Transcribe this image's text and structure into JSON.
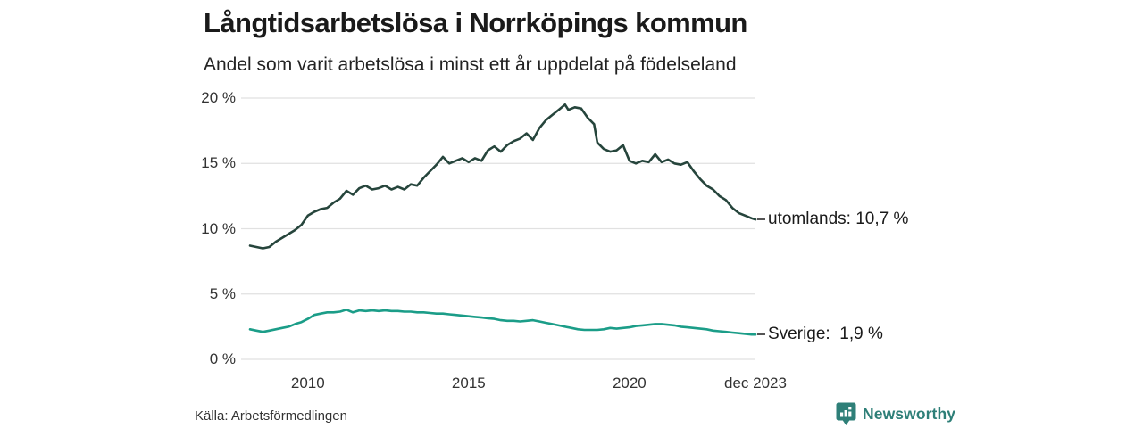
{
  "header": {
    "title": "Långtidsarbetslösa i Norrköpings kommun",
    "subtitle": "Andel som varit arbetslösa i minst ett år uppdelat på födelseland"
  },
  "footer": {
    "source": "Källa: Arbetsförmedlingen",
    "brand": "Newsworthy"
  },
  "colors": {
    "utomlands_line": "#26453c",
    "sverige_line": "#1b9d88",
    "grid": "#e1e1e1",
    "text": "#1a1a1a",
    "axis_text": "#333333",
    "brand": "#2e7f78",
    "label_dash": "#555555"
  },
  "chart_data": {
    "type": "line",
    "title": "Långtidsarbetslösa i Norrköpings kommun",
    "subtitle": "Andel som varit arbetslösa i minst ett år uppdelat på födelseland",
    "grid": "horizontal-only",
    "legend_position": "right-end-labels",
    "x_axis": {
      "range": [
        2008.2,
        2023.92
      ],
      "ticks": [
        {
          "value": 2010,
          "label": "2010"
        },
        {
          "value": 2015,
          "label": "2015"
        },
        {
          "value": 2020,
          "label": "2020"
        },
        {
          "value": 2023.92,
          "label": "dec 2023"
        }
      ]
    },
    "y_axis": {
      "unit": "%",
      "range": [
        0,
        20
      ],
      "ticks": [
        {
          "value": 20,
          "label": "20 %"
        },
        {
          "value": 15,
          "label": "15 %"
        },
        {
          "value": 10,
          "label": "10 %"
        },
        {
          "value": 5,
          "label": "5 %"
        },
        {
          "value": 0,
          "label": "0 %"
        }
      ]
    },
    "series": [
      {
        "name": "utomlands",
        "end_label": "utomlands: 10,7 %",
        "last_value": 10.7,
        "color": "#26453c",
        "points": [
          [
            2008.2,
            8.7
          ],
          [
            2008.4,
            8.6
          ],
          [
            2008.6,
            8.5
          ],
          [
            2008.8,
            8.6
          ],
          [
            2009.0,
            9.0
          ],
          [
            2009.2,
            9.3
          ],
          [
            2009.4,
            9.6
          ],
          [
            2009.6,
            9.9
          ],
          [
            2009.8,
            10.3
          ],
          [
            2010.0,
            11.0
          ],
          [
            2010.2,
            11.3
          ],
          [
            2010.4,
            11.5
          ],
          [
            2010.6,
            11.6
          ],
          [
            2010.8,
            12.0
          ],
          [
            2011.0,
            12.3
          ],
          [
            2011.2,
            12.9
          ],
          [
            2011.4,
            12.6
          ],
          [
            2011.6,
            13.1
          ],
          [
            2011.8,
            13.3
          ],
          [
            2012.0,
            13.0
          ],
          [
            2012.2,
            13.1
          ],
          [
            2012.4,
            13.3
          ],
          [
            2012.6,
            13.0
          ],
          [
            2012.8,
            13.2
          ],
          [
            2013.0,
            13.0
          ],
          [
            2013.2,
            13.4
          ],
          [
            2013.4,
            13.3
          ],
          [
            2013.6,
            13.9
          ],
          [
            2013.8,
            14.4
          ],
          [
            2014.0,
            14.9
          ],
          [
            2014.2,
            15.5
          ],
          [
            2014.4,
            15.0
          ],
          [
            2014.6,
            15.2
          ],
          [
            2014.8,
            15.4
          ],
          [
            2015.0,
            15.1
          ],
          [
            2015.2,
            15.4
          ],
          [
            2015.4,
            15.2
          ],
          [
            2015.6,
            16.0
          ],
          [
            2015.8,
            16.3
          ],
          [
            2016.0,
            15.9
          ],
          [
            2016.2,
            16.4
          ],
          [
            2016.4,
            16.7
          ],
          [
            2016.6,
            16.9
          ],
          [
            2016.8,
            17.3
          ],
          [
            2017.0,
            16.8
          ],
          [
            2017.2,
            17.7
          ],
          [
            2017.4,
            18.3
          ],
          [
            2017.6,
            18.7
          ],
          [
            2017.8,
            19.1
          ],
          [
            2018.0,
            19.5
          ],
          [
            2018.1,
            19.1
          ],
          [
            2018.3,
            19.3
          ],
          [
            2018.5,
            19.2
          ],
          [
            2018.7,
            18.5
          ],
          [
            2018.9,
            18.0
          ],
          [
            2019.0,
            16.6
          ],
          [
            2019.2,
            16.1
          ],
          [
            2019.4,
            15.9
          ],
          [
            2019.6,
            16.0
          ],
          [
            2019.8,
            16.4
          ],
          [
            2020.0,
            15.2
          ],
          [
            2020.2,
            15.0
          ],
          [
            2020.4,
            15.2
          ],
          [
            2020.6,
            15.1
          ],
          [
            2020.8,
            15.7
          ],
          [
            2021.0,
            15.1
          ],
          [
            2021.2,
            15.3
          ],
          [
            2021.4,
            15.0
          ],
          [
            2021.6,
            14.9
          ],
          [
            2021.8,
            15.1
          ],
          [
            2022.0,
            14.4
          ],
          [
            2022.2,
            13.8
          ],
          [
            2022.4,
            13.3
          ],
          [
            2022.6,
            13.0
          ],
          [
            2022.8,
            12.5
          ],
          [
            2023.0,
            12.2
          ],
          [
            2023.2,
            11.6
          ],
          [
            2023.4,
            11.2
          ],
          [
            2023.6,
            11.0
          ],
          [
            2023.8,
            10.8
          ],
          [
            2023.92,
            10.7
          ]
        ]
      },
      {
        "name": "Sverige",
        "end_label": "Sverige:  1,9 %",
        "last_value": 1.9,
        "color": "#1b9d88",
        "points": [
          [
            2008.2,
            2.3
          ],
          [
            2008.4,
            2.2
          ],
          [
            2008.6,
            2.1
          ],
          [
            2008.8,
            2.2
          ],
          [
            2009.0,
            2.3
          ],
          [
            2009.2,
            2.4
          ],
          [
            2009.4,
            2.5
          ],
          [
            2009.6,
            2.7
          ],
          [
            2009.8,
            2.85
          ],
          [
            2010.0,
            3.1
          ],
          [
            2010.2,
            3.4
          ],
          [
            2010.4,
            3.5
          ],
          [
            2010.6,
            3.6
          ],
          [
            2010.8,
            3.6
          ],
          [
            2011.0,
            3.65
          ],
          [
            2011.2,
            3.8
          ],
          [
            2011.4,
            3.6
          ],
          [
            2011.6,
            3.75
          ],
          [
            2011.8,
            3.7
          ],
          [
            2012.0,
            3.75
          ],
          [
            2012.2,
            3.7
          ],
          [
            2012.4,
            3.75
          ],
          [
            2012.6,
            3.7
          ],
          [
            2012.8,
            3.7
          ],
          [
            2013.0,
            3.65
          ],
          [
            2013.2,
            3.65
          ],
          [
            2013.4,
            3.6
          ],
          [
            2013.6,
            3.6
          ],
          [
            2013.8,
            3.55
          ],
          [
            2014.0,
            3.5
          ],
          [
            2014.2,
            3.5
          ],
          [
            2014.4,
            3.45
          ],
          [
            2014.6,
            3.4
          ],
          [
            2014.8,
            3.35
          ],
          [
            2015.0,
            3.3
          ],
          [
            2015.2,
            3.25
          ],
          [
            2015.4,
            3.2
          ],
          [
            2015.6,
            3.15
          ],
          [
            2015.8,
            3.1
          ],
          [
            2016.0,
            3.0
          ],
          [
            2016.2,
            2.95
          ],
          [
            2016.4,
            2.95
          ],
          [
            2016.6,
            2.9
          ],
          [
            2016.8,
            2.95
          ],
          [
            2017.0,
            3.0
          ],
          [
            2017.2,
            2.9
          ],
          [
            2017.4,
            2.8
          ],
          [
            2017.6,
            2.7
          ],
          [
            2017.8,
            2.6
          ],
          [
            2018.0,
            2.5
          ],
          [
            2018.2,
            2.4
          ],
          [
            2018.4,
            2.3
          ],
          [
            2018.6,
            2.25
          ],
          [
            2018.8,
            2.25
          ],
          [
            2019.0,
            2.25
          ],
          [
            2019.2,
            2.3
          ],
          [
            2019.4,
            2.4
          ],
          [
            2019.6,
            2.35
          ],
          [
            2019.8,
            2.4
          ],
          [
            2020.0,
            2.45
          ],
          [
            2020.2,
            2.55
          ],
          [
            2020.4,
            2.6
          ],
          [
            2020.6,
            2.65
          ],
          [
            2020.8,
            2.7
          ],
          [
            2021.0,
            2.7
          ],
          [
            2021.2,
            2.65
          ],
          [
            2021.4,
            2.6
          ],
          [
            2021.6,
            2.5
          ],
          [
            2021.8,
            2.45
          ],
          [
            2022.0,
            2.4
          ],
          [
            2022.2,
            2.35
          ],
          [
            2022.4,
            2.3
          ],
          [
            2022.6,
            2.2
          ],
          [
            2022.8,
            2.15
          ],
          [
            2023.0,
            2.1
          ],
          [
            2023.2,
            2.05
          ],
          [
            2023.4,
            2.0
          ],
          [
            2023.6,
            1.95
          ],
          [
            2023.8,
            1.9
          ],
          [
            2023.92,
            1.9
          ]
        ]
      }
    ]
  }
}
